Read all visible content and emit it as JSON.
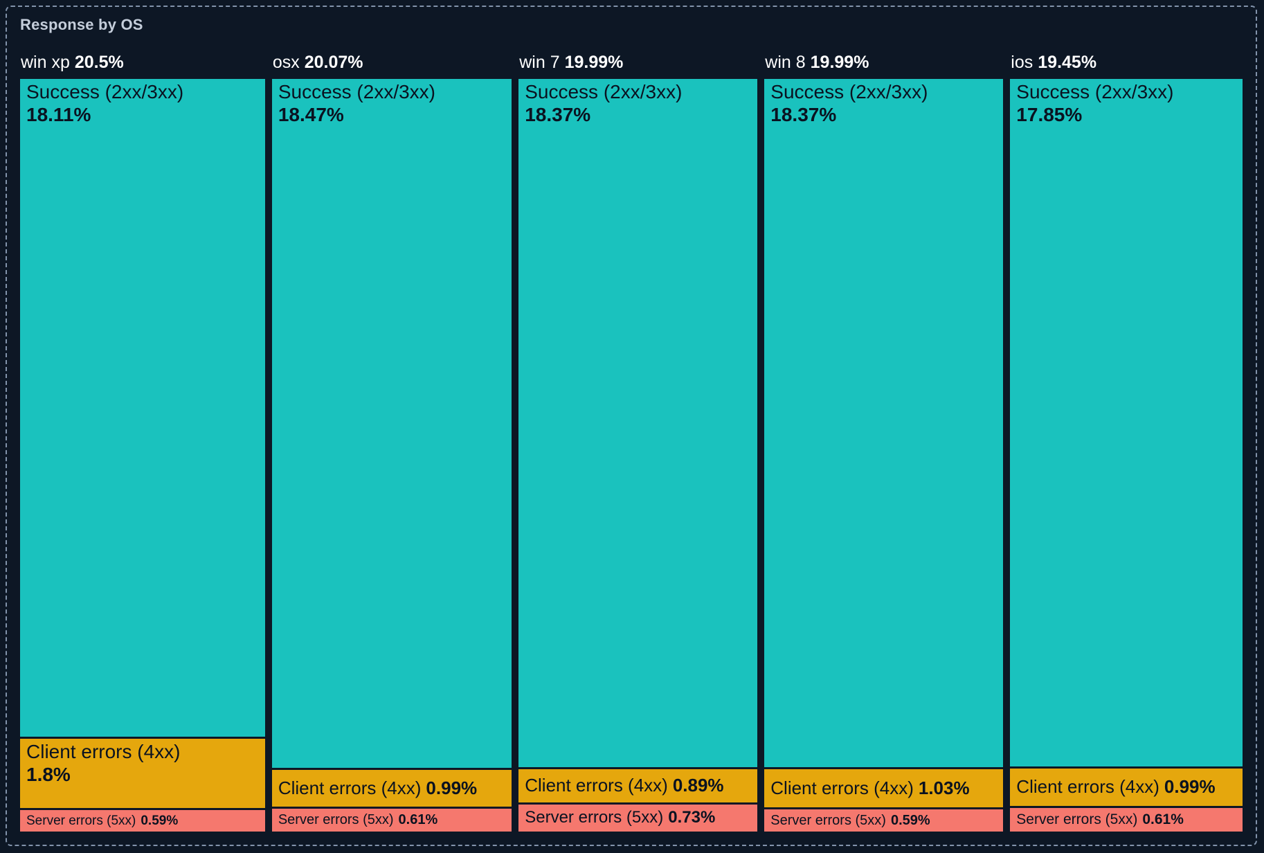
{
  "chart_data": {
    "type": "treemap",
    "title": "Response by OS",
    "orientation": "columns",
    "legend": "none",
    "unit": "%",
    "colors": {
      "success": "#1AC2BE",
      "client_errors": "#E5A70D",
      "server_errors": "#F5786E"
    },
    "background_color": "#0D1725",
    "border_color": "#8293AB",
    "groups": [
      {
        "name": "win xp",
        "share": 20.5,
        "share_label": "20.5%",
        "segments": [
          {
            "category": "success",
            "label": "Success (2xx/3xx)",
            "value": 18.11,
            "value_label": "18.11%"
          },
          {
            "category": "client_errors",
            "label": "Client errors (4xx)",
            "value": 1.8,
            "value_label": "1.8%"
          },
          {
            "category": "server_errors",
            "label": "Server errors (5xx)",
            "value": 0.59,
            "value_label": "0.59%"
          }
        ]
      },
      {
        "name": "osx",
        "share": 20.07,
        "share_label": "20.07%",
        "segments": [
          {
            "category": "success",
            "label": "Success (2xx/3xx)",
            "value": 18.47,
            "value_label": "18.47%"
          },
          {
            "category": "client_errors",
            "label": "Client errors (4xx)",
            "value": 0.99,
            "value_label": "0.99%"
          },
          {
            "category": "server_errors",
            "label": "Server errors (5xx)",
            "value": 0.61,
            "value_label": "0.61%"
          }
        ]
      },
      {
        "name": "win 7",
        "share": 19.99,
        "share_label": "19.99%",
        "segments": [
          {
            "category": "success",
            "label": "Success (2xx/3xx)",
            "value": 18.37,
            "value_label": "18.37%"
          },
          {
            "category": "client_errors",
            "label": "Client errors (4xx)",
            "value": 0.89,
            "value_label": "0.89%"
          },
          {
            "category": "server_errors",
            "label": "Server errors (5xx)",
            "value": 0.73,
            "value_label": "0.73%"
          }
        ]
      },
      {
        "name": "win 8",
        "share": 19.99,
        "share_label": "19.99%",
        "segments": [
          {
            "category": "success",
            "label": "Success (2xx/3xx)",
            "value": 18.37,
            "value_label": "18.37%"
          },
          {
            "category": "client_errors",
            "label": "Client errors (4xx)",
            "value": 1.03,
            "value_label": "1.03%"
          },
          {
            "category": "server_errors",
            "label": "Server errors (5xx)",
            "value": 0.59,
            "value_label": "0.59%"
          }
        ]
      },
      {
        "name": "ios",
        "share": 19.45,
        "share_label": "19.45%",
        "segments": [
          {
            "category": "success",
            "label": "Success (2xx/3xx)",
            "value": 17.85,
            "value_label": "17.85%"
          },
          {
            "category": "client_errors",
            "label": "Client errors (4xx)",
            "value": 0.99,
            "value_label": "0.99%"
          },
          {
            "category": "server_errors",
            "label": "Server errors (5xx)",
            "value": 0.61,
            "value_label": "0.61%"
          }
        ]
      }
    ]
  }
}
